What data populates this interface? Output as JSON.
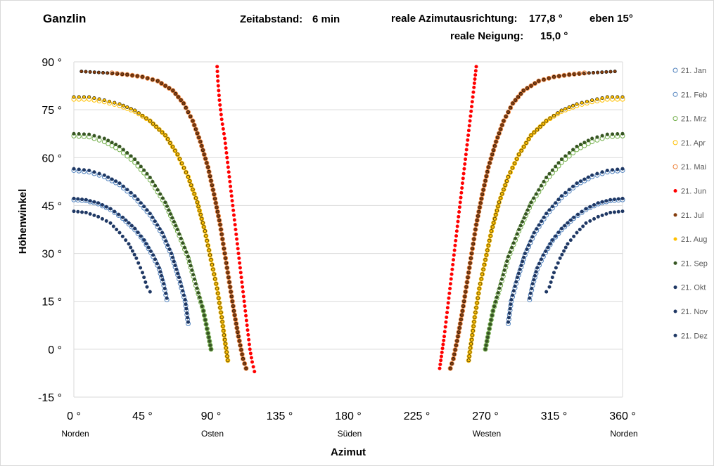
{
  "header": {
    "location": "Ganzlin",
    "interval_label": "Zeitabstand:",
    "interval_value": "6 min",
    "azimuth_label": "reale Azimutausrichtung:",
    "azimuth_value": "177,8 °",
    "plane_label": "eben 15°",
    "tilt_label": "reale Neigung:",
    "tilt_value": "15,0 °"
  },
  "chart_data": {
    "type": "scatter",
    "title": "",
    "xlabel": "Azimut",
    "ylabel": "Höhenwinkel",
    "xlim": [
      0,
      360
    ],
    "ylim": [
      -15,
      90
    ],
    "grid": true,
    "legend_position": "right",
    "x_ticks": [
      {
        "value": 0,
        "label": "0 °",
        "sub": "Norden"
      },
      {
        "value": 45,
        "label": "45 °",
        "sub": ""
      },
      {
        "value": 90,
        "label": "90 °",
        "sub": "Osten"
      },
      {
        "value": 135,
        "label": "135 °",
        "sub": ""
      },
      {
        "value": 180,
        "label": "180 °",
        "sub": "Süden"
      },
      {
        "value": 225,
        "label": "225 °",
        "sub": ""
      },
      {
        "value": 270,
        "label": "270 °",
        "sub": "Westen"
      },
      {
        "value": 315,
        "label": "315 °",
        "sub": ""
      },
      {
        "value": 360,
        "label": "360 °",
        "sub": "Norden"
      }
    ],
    "y_ticks": [
      {
        "value": -15,
        "label": "-15 °"
      },
      {
        "value": 0,
        "label": "0 °"
      },
      {
        "value": 15,
        "label": "15 °"
      },
      {
        "value": 30,
        "label": "30 °"
      },
      {
        "value": 45,
        "label": "45 °"
      },
      {
        "value": 60,
        "label": "60 °"
      },
      {
        "value": 75,
        "label": "75 °"
      },
      {
        "value": 90,
        "label": "90 °"
      }
    ],
    "series": [
      {
        "name": "21. Jan",
        "color": "#4f81bd",
        "marker": "hollow",
        "mirror": true,
        "points": [
          [
            0,
            46.8
          ],
          [
            8,
            46.5
          ],
          [
            16,
            45.5
          ],
          [
            24,
            43.7
          ],
          [
            32,
            41
          ],
          [
            40,
            37.4
          ],
          [
            46,
            34
          ],
          [
            52,
            29
          ],
          [
            56,
            25
          ],
          [
            59,
            20
          ],
          [
            61,
            15.5
          ]
        ]
      },
      {
        "name": "21. Feb",
        "color": "#4f81bd",
        "marker": "hollow",
        "mirror": true,
        "points": [
          [
            0,
            56
          ],
          [
            10,
            55.5
          ],
          [
            20,
            54
          ],
          [
            30,
            51.5
          ],
          [
            40,
            47.5
          ],
          [
            50,
            42
          ],
          [
            58,
            36
          ],
          [
            64,
            29.5
          ],
          [
            69,
            22
          ],
          [
            73,
            15
          ],
          [
            75,
            8
          ]
        ]
      },
      {
        "name": "21. Mrz",
        "color": "#70ad47",
        "marker": "hollow",
        "mirror": true,
        "points": [
          [
            0,
            66.8
          ],
          [
            10,
            66.5
          ],
          [
            20,
            65
          ],
          [
            30,
            62.5
          ],
          [
            40,
            58.5
          ],
          [
            50,
            53
          ],
          [
            60,
            45.5
          ],
          [
            68,
            37
          ],
          [
            75,
            28.5
          ],
          [
            80,
            20
          ],
          [
            85,
            12
          ],
          [
            88,
            5
          ],
          [
            90,
            0
          ]
        ]
      },
      {
        "name": "21. Apr",
        "color": "#ffc000",
        "marker": "hollow",
        "mirror": true,
        "points": [
          [
            0,
            78.3
          ],
          [
            10,
            78.3
          ],
          [
            20,
            77.5
          ],
          [
            30,
            76.3
          ],
          [
            40,
            74.5
          ],
          [
            50,
            71.5
          ],
          [
            60,
            67
          ],
          [
            68,
            61
          ],
          [
            75,
            54
          ],
          [
            81,
            46
          ],
          [
            86,
            37
          ],
          [
            90,
            28
          ],
          [
            94,
            19
          ],
          [
            97,
            10
          ],
          [
            99,
            3
          ],
          [
            101,
            -3.5
          ]
        ]
      },
      {
        "name": "21. Mai",
        "color": "#ed7d31",
        "marker": "hollow",
        "mirror": true,
        "points": [
          [
            25,
            86.5
          ],
          [
            35,
            86
          ],
          [
            45,
            85.3
          ],
          [
            55,
            84
          ],
          [
            65,
            81
          ],
          [
            72,
            77
          ],
          [
            78,
            71.5
          ],
          [
            83,
            65
          ],
          [
            88,
            57
          ],
          [
            92,
            48.5
          ],
          [
            96,
            39
          ],
          [
            99,
            30
          ],
          [
            102,
            21
          ],
          [
            105,
            12
          ],
          [
            108,
            4
          ],
          [
            111,
            -3
          ],
          [
            113,
            -6
          ]
        ]
      },
      {
        "name": "21. Jun",
        "color": "#ff0000",
        "marker": "filled",
        "mirror": false,
        "points": [
          [
            94,
            88.5
          ],
          [
            94.5,
            84
          ],
          [
            95.5,
            78
          ],
          [
            97,
            72
          ],
          [
            99,
            66
          ],
          [
            100.5,
            60
          ],
          [
            102,
            54
          ],
          [
            103.5,
            48
          ],
          [
            105,
            42
          ],
          [
            106.5,
            36
          ],
          [
            108,
            30
          ],
          [
            109.5,
            24
          ],
          [
            111,
            18
          ],
          [
            112.5,
            12
          ],
          [
            114,
            6
          ],
          [
            115.5,
            0
          ],
          [
            117,
            -4
          ],
          [
            118.5,
            -7
          ],
          [
            240,
            -6
          ],
          [
            241.5,
            -1
          ],
          [
            243,
            4
          ],
          [
            244.5,
            10
          ],
          [
            246,
            16
          ],
          [
            247.5,
            22
          ],
          [
            249,
            28
          ],
          [
            250.5,
            34
          ],
          [
            252,
            40
          ],
          [
            253.5,
            46
          ],
          [
            255,
            52
          ],
          [
            256.5,
            58
          ],
          [
            258,
            64
          ],
          [
            259.5,
            70
          ],
          [
            261,
            76
          ],
          [
            262.5,
            82
          ],
          [
            264,
            88.5
          ]
        ]
      },
      {
        "name": "21. Jul",
        "color": "#843c0c",
        "marker": "filled",
        "mirror": true,
        "points": [
          [
            5,
            87
          ],
          [
            22,
            86.5
          ],
          [
            35,
            86
          ],
          [
            45,
            85.3
          ],
          [
            55,
            84
          ],
          [
            65,
            81
          ],
          [
            72,
            77
          ],
          [
            78,
            71.5
          ],
          [
            83,
            65
          ],
          [
            88,
            57
          ],
          [
            92,
            48.5
          ],
          [
            96,
            39
          ],
          [
            99,
            30
          ],
          [
            102,
            21
          ],
          [
            105,
            12
          ],
          [
            108,
            4
          ],
          [
            111,
            -3
          ],
          [
            113,
            -6
          ]
        ]
      },
      {
        "name": "21. Aug",
        "color": "#ffc000",
        "marker": "filled",
        "mirror": true,
        "points": [
          [
            0,
            79
          ],
          [
            10,
            79
          ],
          [
            20,
            78
          ],
          [
            30,
            76.8
          ],
          [
            40,
            74.8
          ],
          [
            50,
            71.5
          ],
          [
            60,
            67
          ],
          [
            68,
            61
          ],
          [
            75,
            54
          ],
          [
            81,
            46
          ],
          [
            86,
            37
          ],
          [
            90,
            28
          ],
          [
            94,
            19
          ],
          [
            97,
            10
          ],
          [
            99,
            3
          ],
          [
            101,
            -3.5
          ]
        ]
      },
      {
        "name": "21. Sep",
        "color": "#375623",
        "marker": "filled",
        "mirror": true,
        "points": [
          [
            0,
            67.5
          ],
          [
            10,
            67.3
          ],
          [
            20,
            66
          ],
          [
            30,
            63.5
          ],
          [
            40,
            59.5
          ],
          [
            50,
            53.8
          ],
          [
            60,
            46
          ],
          [
            68,
            37.5
          ],
          [
            75,
            29
          ],
          [
            80,
            20.5
          ],
          [
            85,
            12
          ],
          [
            88,
            5
          ],
          [
            90,
            0
          ]
        ]
      },
      {
        "name": "21. Okt",
        "color": "#1f3864",
        "marker": "filled",
        "mirror": true,
        "points": [
          [
            0,
            56.5
          ],
          [
            10,
            56
          ],
          [
            20,
            54.5
          ],
          [
            30,
            52
          ],
          [
            40,
            48
          ],
          [
            50,
            42.5
          ],
          [
            58,
            36.5
          ],
          [
            64,
            30
          ],
          [
            69,
            22.5
          ],
          [
            73,
            15.5
          ],
          [
            75,
            8.5
          ]
        ]
      },
      {
        "name": "21. Nov",
        "color": "#203864",
        "marker": "filled",
        "mirror": true,
        "points": [
          [
            0,
            47.2
          ],
          [
            8,
            46.8
          ],
          [
            16,
            45.8
          ],
          [
            24,
            44
          ],
          [
            32,
            41.3
          ],
          [
            40,
            37.8
          ],
          [
            46,
            34.2
          ],
          [
            52,
            29.5
          ],
          [
            56,
            25.5
          ],
          [
            59,
            20.5
          ],
          [
            61,
            16
          ]
        ]
      },
      {
        "name": "21. Dez",
        "color": "#1f3864",
        "marker": "filled",
        "mirror": true,
        "points": [
          [
            0,
            43.2
          ],
          [
            8,
            42.8
          ],
          [
            16,
            41.5
          ],
          [
            24,
            39.5
          ],
          [
            30,
            36.5
          ],
          [
            36,
            33
          ],
          [
            41,
            28.5
          ],
          [
            45,
            24
          ],
          [
            48,
            19.5
          ],
          [
            50,
            18
          ]
        ]
      }
    ]
  }
}
